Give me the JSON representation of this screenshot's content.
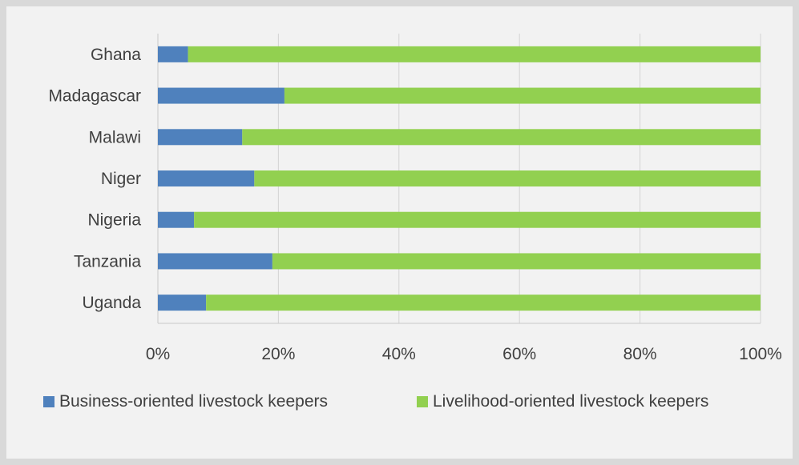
{
  "chart_data": {
    "type": "bar",
    "orientation": "horizontal",
    "stacked": true,
    "normalized": true,
    "categories": [
      "Ghana",
      "Madagascar",
      "Malawi",
      "Niger",
      "Nigeria",
      "Tanzania",
      "Uganda"
    ],
    "series": [
      {
        "name": "Business-oriented livestock keepers",
        "color": "#4f81bd",
        "values": [
          5,
          21,
          14,
          16,
          6,
          19,
          8
        ]
      },
      {
        "name": "Livelihood-oriented livestock keepers",
        "color": "#92d050",
        "values": [
          95,
          79,
          86,
          84,
          94,
          81,
          92
        ]
      }
    ],
    "x_ticks": [
      "0%",
      "20%",
      "40%",
      "60%",
      "80%",
      "100%"
    ],
    "xlim": [
      0,
      100
    ],
    "grid": true,
    "legend_position": "bottom"
  }
}
